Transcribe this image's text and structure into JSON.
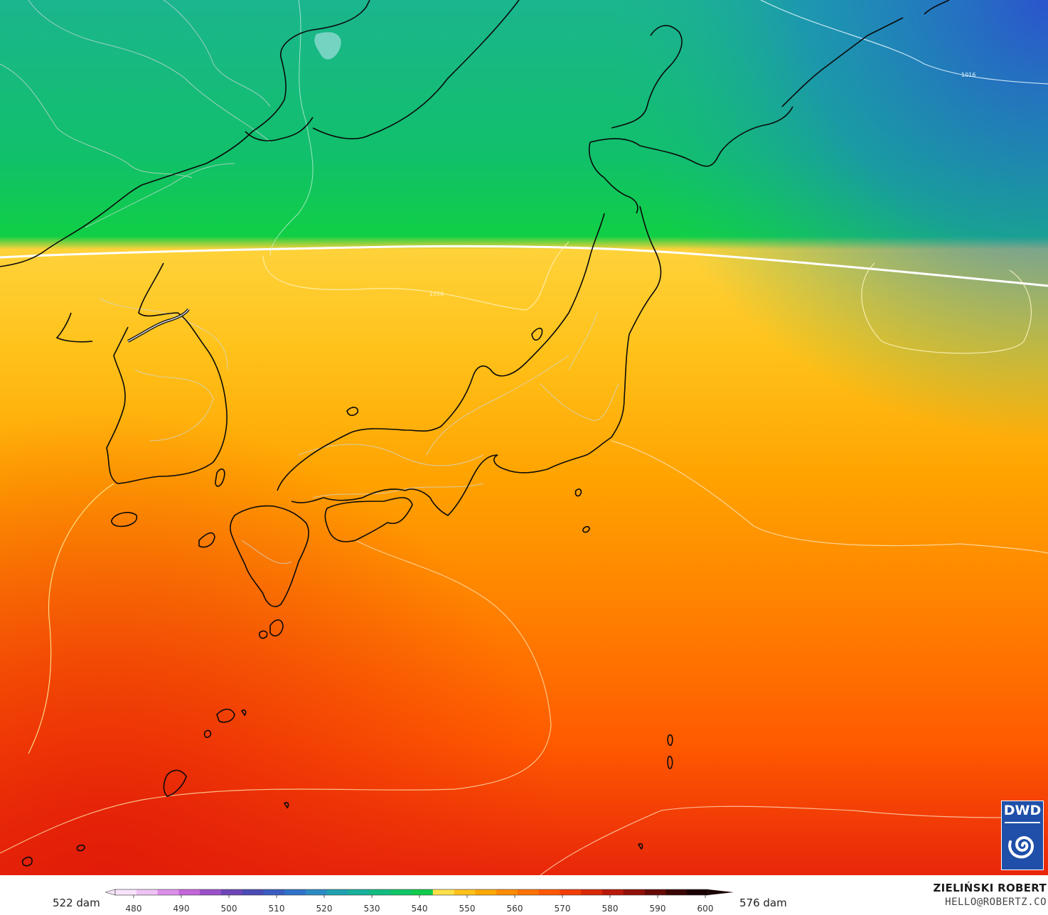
{
  "map": {
    "contour_label_1": "1016",
    "contour_label_2": "1016",
    "gradient_colors": [
      "#1a6fd6",
      "#13b58a",
      "#11cf45",
      "#ffd23a",
      "#ffb40a",
      "#ff8a00",
      "#ff5a00",
      "#e8200a"
    ]
  },
  "legend": {
    "min_label": "522 dam",
    "max_label": "576 dam",
    "ticks": [
      "480",
      "490",
      "500",
      "510",
      "520",
      "530",
      "540",
      "550",
      "560",
      "570",
      "580",
      "590",
      "600"
    ],
    "colors": [
      "#f7e3fb",
      "#eec2f5",
      "#dc8fe8",
      "#c266d9",
      "#9a50c8",
      "#6e46b8",
      "#4a4bb4",
      "#3a5cc0",
      "#2f73c8",
      "#2a8bc4",
      "#1fa0b0",
      "#17b09a",
      "#12bb80",
      "#10c566",
      "#0fcc4c",
      "#ffe04a",
      "#ffc21a",
      "#ffa800",
      "#ff8c00",
      "#ff7200",
      "#ff5800",
      "#f23d05",
      "#d82808",
      "#b8180a",
      "#901008",
      "#660a06",
      "#3a0504",
      "#1a0202"
    ]
  },
  "credit": {
    "name": "ZIELIŃSKI ROBERT",
    "email": "HELLO@ROBERTZ.CO"
  },
  "logo": {
    "text": "DWD",
    "color": "#1f4fa8"
  }
}
